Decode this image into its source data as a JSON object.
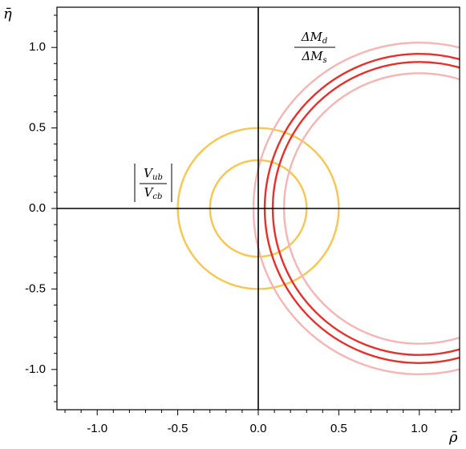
{
  "chart_data": {
    "type": "circles",
    "xlabel": "ρ̄",
    "ylabel": "η̄",
    "xlim": [
      -1.25,
      1.25
    ],
    "ylim": [
      -1.25,
      1.25
    ],
    "xticks": [
      {
        "value": -1.0,
        "label": "-1.0"
      },
      {
        "value": -0.5,
        "label": "-0.5"
      },
      {
        "value": 0.0,
        "label": "0.0"
      },
      {
        "value": 0.5,
        "label": "0.5"
      },
      {
        "value": 1.0,
        "label": "1.0"
      }
    ],
    "yticks": [
      {
        "value": -1.0,
        "label": "-1.0"
      },
      {
        "value": -0.5,
        "label": "-0.5"
      },
      {
        "value": 0.0,
        "label": "0.0"
      },
      {
        "value": 0.5,
        "label": "0.5"
      },
      {
        "value": 1.0,
        "label": "1.0"
      }
    ],
    "xminor": [
      -1.2,
      -1.1,
      -0.9,
      -0.8,
      -0.7,
      -0.6,
      -0.4,
      -0.3,
      -0.2,
      -0.1,
      0.1,
      0.2,
      0.3,
      0.4,
      0.6,
      0.7,
      0.8,
      0.9,
      1.1,
      1.2
    ],
    "yminor": [
      -1.2,
      -1.1,
      -0.9,
      -0.8,
      -0.7,
      -0.6,
      -0.4,
      -0.3,
      -0.2,
      -0.1,
      0.1,
      0.2,
      0.3,
      0.4,
      0.6,
      0.7,
      0.8,
      0.9,
      1.1,
      1.2
    ],
    "circles": [
      {
        "center": [
          0,
          0
        ],
        "radius": 0.5,
        "color": "#f8c650"
      },
      {
        "center": [
          0,
          0
        ],
        "radius": 0.3,
        "color": "#f8c650"
      },
      {
        "center": [
          1,
          0
        ],
        "radius": 1.03,
        "color": "#f6b5b5"
      },
      {
        "center": [
          1,
          0
        ],
        "radius": 0.84,
        "color": "#f6b5b5"
      },
      {
        "center": [
          1,
          0
        ],
        "radius": 0.96,
        "color": "#e8302a"
      },
      {
        "center": [
          1,
          0
        ],
        "radius": 0.91,
        "color": "#e8302a"
      }
    ],
    "annotations": [
      {
        "numerator": [
          "ΔM",
          "d"
        ],
        "denominator": [
          "ΔM",
          "s"
        ]
      },
      {
        "numerator": [
          "V",
          "ub"
        ],
        "denominator": [
          "V",
          "cb"
        ]
      }
    ]
  }
}
